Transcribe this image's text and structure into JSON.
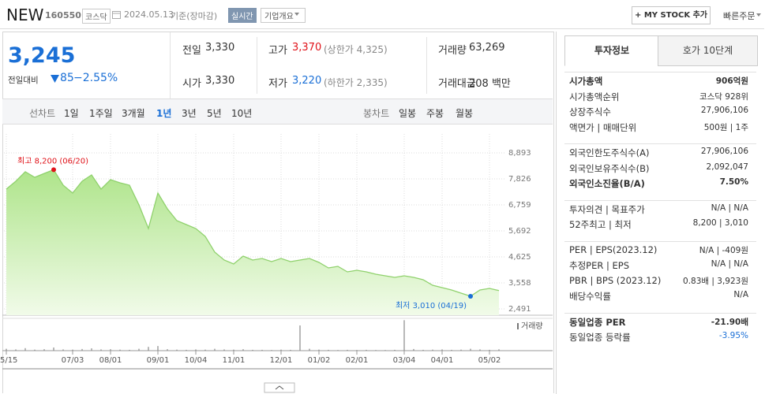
{
  "header": {
    "name": "NEW",
    "code": "160550",
    "market": "코스닥",
    "date": "2024.05.13",
    "basis": "기준(장마감)",
    "realtime": "실시간",
    "overview": "기업개요",
    "mystock": "+ MY STOCK 추가",
    "quick_order": "빠른주문"
  },
  "price": {
    "current": "3,245",
    "change_label": "전일대비",
    "change": "85",
    "change_rate": "−2.55%"
  },
  "summary": [
    [
      {
        "label": "전일",
        "value": "3,330"
      },
      {
        "label": "고가",
        "value": "3,370",
        "note": "(상한가 4,325)"
      },
      {
        "label": "거래량",
        "value": "63,269"
      }
    ],
    [
      {
        "label": "시가",
        "value": "3,330"
      },
      {
        "label": "저가",
        "value": "3,220",
        "note": "(하한가 2,335)"
      },
      {
        "label": "거래대금",
        "value": "208 백만"
      }
    ]
  ],
  "tabs": {
    "line_label": "선차트",
    "line_periods": [
      "1일",
      "1주일",
      "3개월",
      "1년",
      "3년",
      "5년",
      "10년"
    ],
    "selected": "1년",
    "candle_label": "봉차트",
    "candle_periods": [
      "일봉",
      "주봉",
      "월봉"
    ]
  },
  "price_chart": {
    "type": "area",
    "x": [
      "05/15",
      "05/22",
      "05/30",
      "06/05",
      "06/12",
      "06/20",
      "06/26",
      "07/03",
      "07/10",
      "07/17",
      "07/24",
      "08/01",
      "08/07",
      "08/14",
      "08/21",
      "08/28",
      "09/01",
      "09/11",
      "09/18",
      "09/25",
      "10/04",
      "10/10",
      "10/16",
      "10/23",
      "11/01",
      "11/06",
      "11/13",
      "11/20",
      "11/27",
      "12/01",
      "12/11",
      "12/18",
      "12/26",
      "01/02",
      "01/08",
      "01/15",
      "01/22",
      "02/01",
      "02/05",
      "02/13",
      "02/19",
      "02/26",
      "03/04",
      "03/11",
      "03/18",
      "03/25",
      "04/01",
      "04/08",
      "04/15",
      "04/19",
      "04/29",
      "05/02",
      "05/13"
    ],
    "values": [
      7406,
      7729,
      8117,
      7890,
      8050,
      8200,
      7567,
      7244,
      7729,
      7988,
      7406,
      7794,
      7665,
      7567,
      6759,
      5789,
      7244,
      6598,
      6112,
      5950,
      5789,
      5466,
      4819,
      4496,
      4334,
      4658,
      4496,
      4561,
      4432,
      4561,
      4432,
      4496,
      4561,
      4399,
      4173,
      4238,
      4011,
      4076,
      4011,
      3914,
      3850,
      3785,
      3850,
      3785,
      3688,
      3462,
      3365,
      3268,
      3139,
      3010,
      3268,
      3332,
      3245
    ],
    "volume": [
      90000,
      60000,
      120000,
      50000,
      70000,
      150000,
      60000,
      50000,
      80000,
      110000,
      60000,
      70000,
      50000,
      40000,
      90000,
      180000,
      220000,
      70000,
      50000,
      40000,
      60000,
      50000,
      90000,
      60000,
      50000,
      70000,
      40000,
      40000,
      30000,
      50000,
      40000,
      1200000,
      90000,
      50000,
      40000,
      30000,
      40000,
      30000,
      40000,
      30000,
      30000,
      40000,
      1450000,
      80000,
      40000,
      50000,
      60000,
      40000,
      50000,
      90000,
      60000,
      40000,
      63269
    ],
    "volume_label": "거래량",
    "volume_lim": [
      0,
      1500000
    ],
    "color": "#8fd16c",
    "ylim": [
      2491,
      8893
    ],
    "yticks": [
      {
        "value": 8893,
        "label": "8,893"
      },
      {
        "value": 7826,
        "label": "7,826"
      },
      {
        "value": 6759,
        "label": "6,759"
      },
      {
        "value": 5692,
        "label": "5,692"
      },
      {
        "value": 4625,
        "label": "4,625"
      },
      {
        "value": 3558,
        "label": "3,558"
      },
      {
        "value": 2491,
        "label": "2,491"
      }
    ],
    "xticks": [
      "05/15",
      "07/03",
      "08/01",
      "09/01",
      "10/04",
      "11/01",
      "12/01",
      "01/02",
      "02/01",
      "03/04",
      "04/01",
      "05/02"
    ],
    "grid": true,
    "annotations": [
      {
        "text": "최고 8,200 (06/20)",
        "value": 8200,
        "x": "06/20",
        "color": "#e0131a"
      },
      {
        "text": "최저 3,010 (04/19)",
        "value": 3010,
        "x": "04/19",
        "color": "#1a6fd6"
      }
    ]
  },
  "info_tabs": [
    "투자정보",
    "호가 10단계"
  ],
  "info": [
    [
      {
        "label": "시가총액",
        "value": "906억원"
      },
      {
        "label": "시가총액순위",
        "value": "코스닥 928위"
      },
      {
        "label": "상장주식수",
        "value": "27,906,106"
      },
      {
        "label": "액면가 | 매매단위",
        "value": "500원 | 1주"
      }
    ],
    [
      {
        "label": "외국인한도주식수(A)",
        "value": "27,906,106"
      },
      {
        "label": "외국인보유주식수(B)",
        "value": "2,092,047"
      },
      {
        "label": "외국인소진율(B/A)",
        "value": "7.50%"
      }
    ],
    [
      {
        "label": "투자의견 | 목표주가",
        "value": "N/A | N/A"
      },
      {
        "label": "52주최고 | 최저",
        "value": "8,200 | 3,010"
      }
    ],
    [
      {
        "label": "PER | EPS(2023.12)",
        "value": "N/A | -409원"
      },
      {
        "label": "추정PER | EPS",
        "value": "N/A | N/A"
      },
      {
        "label": "PBR | BPS (2023.12)",
        "value": "0.83배 | 3,923원"
      },
      {
        "label": "배당수익률",
        "value": "N/A"
      }
    ],
    [
      {
        "label": "동일업종 PER",
        "value": "-21.90배"
      },
      {
        "label": "동일업종 등락률",
        "value": "-3.95%"
      }
    ]
  ]
}
